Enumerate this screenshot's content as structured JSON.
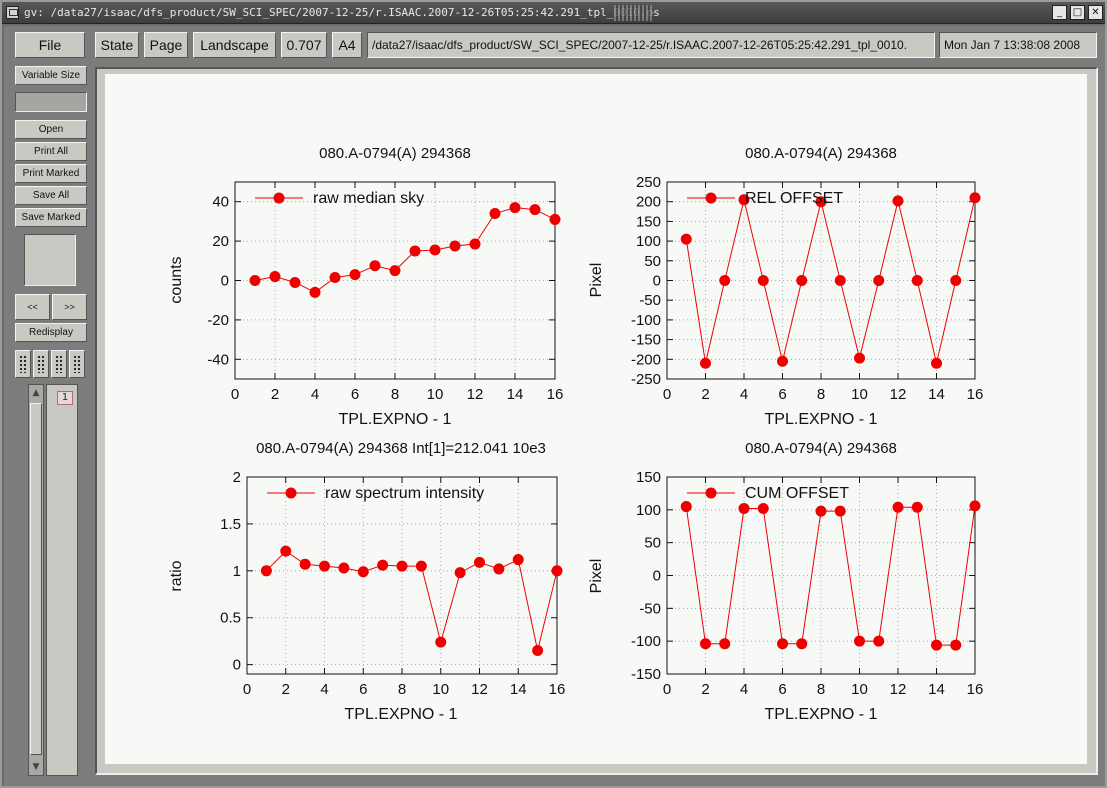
{
  "window": {
    "title": "gv: /data27/isaac/dfs_product/SW_SCI_SPEC/2007-12-25/r.ISAAC.2007-12-26T05:25:42.291_tpl_0010.ps",
    "controls": [
      "_",
      "□",
      "✕"
    ]
  },
  "toolbar": {
    "file": "File",
    "state": "State",
    "page": "Page",
    "orientation": "Landscape",
    "scale": "0.707",
    "media": "A4",
    "filename": "/data27/isaac/dfs_product/SW_SCI_SPEC/2007-12-25/r.ISAAC.2007-12-26T05:25:42.291_tpl_0010.",
    "date": "Mon Jan  7 13:38:08 2008"
  },
  "sidebar": {
    "variable_size": "Variable Size",
    "open": "Open",
    "print_all": "Print All",
    "print_marked": "Print Marked",
    "save_all": "Save All",
    "save_marked": "Save Marked",
    "prev": "<<",
    "next": ">>",
    "redisplay": "Redisplay",
    "page_number": "1"
  },
  "chart_data": [
    {
      "type": "line",
      "title": "080.A-0794(A) 294368",
      "xlabel": "TPL.EXPNO - 1",
      "ylabel": "counts",
      "legend": "raw median sky",
      "legend_position": "top-left",
      "color": "#ee0000",
      "xlim": [
        0,
        16
      ],
      "ylim": [
        -50,
        50
      ],
      "xticks": [
        0,
        2,
        4,
        6,
        8,
        10,
        12,
        14,
        16
      ],
      "yticks": [
        -40,
        -20,
        0,
        20,
        40
      ],
      "grid": true,
      "x": [
        1,
        2,
        3,
        4,
        5,
        6,
        7,
        8,
        9,
        10,
        11,
        12,
        13,
        14,
        15,
        16
      ],
      "y": [
        0,
        2,
        -1,
        -6,
        1.5,
        3,
        7.5,
        5,
        15,
        15.5,
        17.5,
        18.5,
        34,
        37,
        36,
        31
      ]
    },
    {
      "type": "line",
      "title": "080.A-0794(A) 294368",
      "xlabel": "TPL.EXPNO - 1",
      "ylabel": "Pixel",
      "legend": "REL OFFSET",
      "legend_position": "top-left",
      "color": "#ee0000",
      "xlim": [
        0,
        16
      ],
      "ylim": [
        -250,
        250
      ],
      "xticks": [
        0,
        2,
        4,
        6,
        8,
        10,
        12,
        14,
        16
      ],
      "yticks": [
        -250,
        -200,
        -150,
        -100,
        -50,
        0,
        50,
        100,
        150,
        200,
        250
      ],
      "grid": true,
      "x": [
        1,
        2,
        3,
        4,
        5,
        6,
        7,
        8,
        9,
        10,
        11,
        12,
        13,
        14,
        15,
        16
      ],
      "y": [
        105,
        -210,
        0,
        205,
        0,
        -205,
        0,
        200,
        0,
        -197,
        0,
        202,
        0,
        -210,
        0,
        210
      ]
    },
    {
      "type": "line",
      "title": "080.A-0794(A) 294368 Int[1]=212.041 10e3",
      "xlabel": "TPL.EXPNO - 1",
      "ylabel": "ratio",
      "legend": "raw spectrum intensity",
      "legend_position": "top-left",
      "color": "#ee0000",
      "xlim": [
        0,
        16
      ],
      "ylim": [
        -0.1,
        2
      ],
      "xticks": [
        0,
        2,
        4,
        6,
        8,
        10,
        12,
        14,
        16
      ],
      "yticks": [
        0,
        0.5,
        1,
        1.5,
        2
      ],
      "grid": true,
      "x": [
        1,
        2,
        3,
        4,
        5,
        6,
        7,
        8,
        9,
        10,
        11,
        12,
        13,
        14,
        15,
        16
      ],
      "y": [
        1.0,
        1.21,
        1.07,
        1.05,
        1.03,
        0.99,
        1.06,
        1.05,
        1.05,
        0.24,
        0.98,
        1.09,
        1.02,
        1.12,
        0.15,
        1.0
      ]
    },
    {
      "type": "line",
      "title": "080.A-0794(A) 294368",
      "xlabel": "TPL.EXPNO - 1",
      "ylabel": "Pixel",
      "legend": "CUM OFFSET",
      "legend_position": "top-left",
      "color": "#ee0000",
      "xlim": [
        0,
        16
      ],
      "ylim": [
        -150,
        150
      ],
      "xticks": [
        0,
        2,
        4,
        6,
        8,
        10,
        12,
        14,
        16
      ],
      "yticks": [
        -150,
        -100,
        -50,
        0,
        50,
        100,
        150
      ],
      "grid": true,
      "x": [
        1,
        2,
        3,
        4,
        5,
        6,
        7,
        8,
        9,
        10,
        11,
        12,
        13,
        14,
        15,
        16
      ],
      "y": [
        105,
        -104,
        -104,
        102,
        102,
        -104,
        -104,
        98,
        98,
        -100,
        -100,
        104,
        104,
        -106,
        -106,
        106
      ]
    }
  ]
}
